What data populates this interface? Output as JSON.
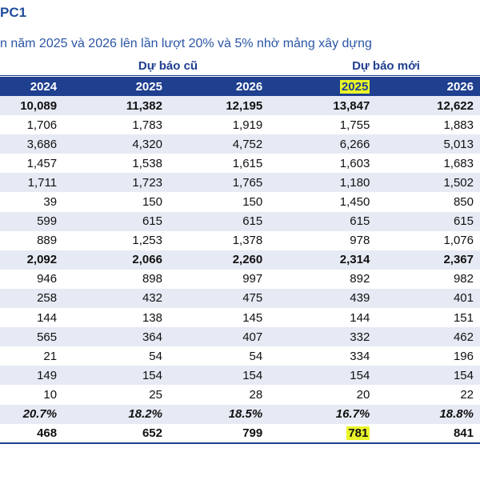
{
  "title": "PC1",
  "subtitle": "n năm 2025 và 2026 lên lần lượt 20% và 5% nhờ mảng xây dựng",
  "group_headers": {
    "old": "Dự báo cũ",
    "new": "Dự báo mới"
  },
  "columns": [
    "2024",
    "2025",
    "2026",
    "2025",
    "2026"
  ],
  "rows": [
    [
      "10,089",
      "11,382",
      "12,195",
      "13,847",
      "12,622"
    ],
    [
      "1,706",
      "1,783",
      "1,919",
      "1,755",
      "1,883"
    ],
    [
      "3,686",
      "4,320",
      "4,752",
      "6,266",
      "5,013"
    ],
    [
      "1,457",
      "1,538",
      "1,615",
      "1,603",
      "1,683"
    ],
    [
      "1,711",
      "1,723",
      "1,765",
      "1,180",
      "1,502"
    ],
    [
      "39",
      "150",
      "150",
      "1,450",
      "850"
    ],
    [
      "599",
      "615",
      "615",
      "615",
      "615"
    ],
    [
      "889",
      "1,253",
      "1,378",
      "978",
      "1,076"
    ],
    [
      "2,092",
      "2,066",
      "2,260",
      "2,314",
      "2,367"
    ],
    [
      "946",
      "898",
      "997",
      "892",
      "982"
    ],
    [
      "258",
      "432",
      "475",
      "439",
      "401"
    ],
    [
      "144",
      "138",
      "145",
      "144",
      "151"
    ],
    [
      "565",
      "364",
      "407",
      "332",
      "462"
    ],
    [
      "21",
      "54",
      "54",
      "334",
      "196"
    ],
    [
      "149",
      "154",
      "154",
      "154",
      "154"
    ],
    [
      "10",
      "25",
      "28",
      "20",
      "22"
    ],
    [
      "20.7%",
      "18.2%",
      "18.5%",
      "16.7%",
      "18.8%"
    ],
    [
      "468",
      "652",
      "799",
      "781",
      "841"
    ]
  ],
  "highlight_color": "#e9f52a",
  "header_color": "#1f3f8f"
}
